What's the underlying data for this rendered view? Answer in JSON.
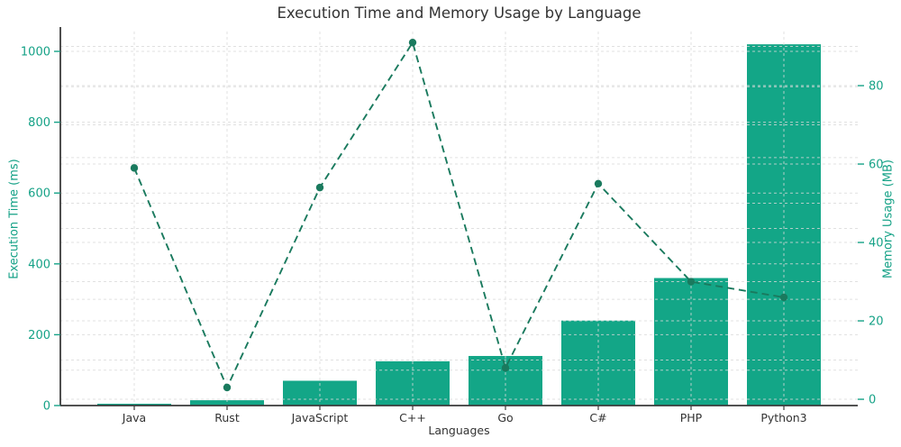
{
  "title": "Execution Time and Memory Usage by Language",
  "chart_data": {
    "type": "combo_bar_line",
    "title": "Execution Time and Memory Usage by Language",
    "xlabel": "Languages",
    "categories": [
      "Java",
      "Rust",
      "JavaScript",
      "C++",
      "Go",
      "C#",
      "PHP",
      "Python3"
    ],
    "series": [
      {
        "name": "Execution Time (ms)",
        "type": "bar",
        "axis": "left",
        "values": [
          5,
          15,
          70,
          125,
          140,
          240,
          360,
          1020
        ]
      },
      {
        "name": "Memory Usage (MB)",
        "type": "line",
        "axis": "right",
        "line_style": "dashed",
        "marker": "circle",
        "values": [
          59,
          3,
          54,
          91,
          8,
          55,
          30,
          26
        ]
      }
    ],
    "left_axis": {
      "label": "Execution Time (ms)",
      "ticks": [
        0,
        200,
        400,
        600,
        800,
        1000
      ],
      "grid_values": [
        0,
        100,
        200,
        300,
        400,
        500,
        600,
        700,
        800,
        900,
        1000
      ],
      "range": [
        0,
        1056
      ]
    },
    "right_axis": {
      "label": "Memory Usage (MB)",
      "ticks": [
        0,
        20,
        40,
        60,
        80
      ],
      "grid_values": [
        0,
        10,
        20,
        30,
        40,
        50,
        60,
        70,
        80,
        90
      ],
      "range": [
        -1.6,
        93.8
      ]
    },
    "grid": true,
    "grid_style": "dashed",
    "legend": false
  },
  "colors": {
    "bar": "#13a687",
    "line": "#1a7a5e",
    "green_text": "#16a287",
    "dark_text": "#333333",
    "title_text": "#333333",
    "grid": "#d8d8d8",
    "spine": "#3a3a3a",
    "background": "#ffffff"
  }
}
